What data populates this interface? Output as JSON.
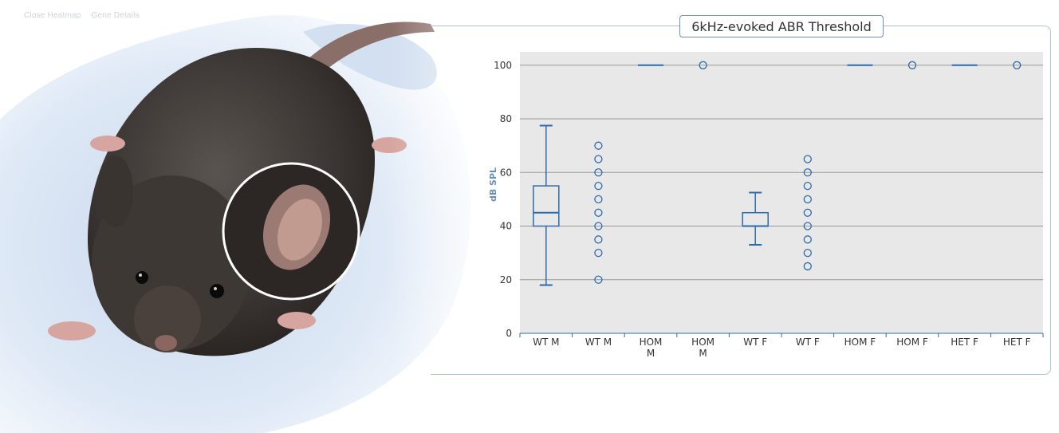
{
  "header": {
    "nav_items": [
      "Close Heatmap",
      "Gene Details"
    ]
  },
  "colors": {
    "series": "#2e6aab",
    "plot_bg": "#e8e8e8",
    "grid": "#999999"
  },
  "chart_data": {
    "type": "box",
    "title": "6kHz-evoked ABR Threshold",
    "ylabel": "dB SPL",
    "ylim": [
      0,
      105
    ],
    "yticks": [
      0,
      20,
      40,
      60,
      80,
      100
    ],
    "grid": true,
    "categories": [
      "WT M",
      "WT M",
      "HOM M",
      "HOM M",
      "WT F",
      "WT F",
      "HOM F",
      "HOM F",
      "HET F",
      "HET F"
    ],
    "groups": [
      {
        "kind": "box",
        "min": 18,
        "q1": 40,
        "median": 45,
        "q3": 55,
        "max": 77.5
      },
      {
        "kind": "points",
        "values": [
          20,
          30,
          35,
          40,
          45,
          50,
          55,
          60,
          65,
          70
        ]
      },
      {
        "kind": "box",
        "min": 100,
        "q1": 100,
        "median": 100,
        "q3": 100,
        "max": 100
      },
      {
        "kind": "points",
        "values": [
          100
        ]
      },
      {
        "kind": "box",
        "min": 33,
        "q1": 40,
        "median": 40,
        "q3": 45,
        "max": 52.5
      },
      {
        "kind": "points",
        "values": [
          25,
          30,
          35,
          40,
          45,
          50,
          55,
          60,
          65
        ]
      },
      {
        "kind": "box",
        "min": 100,
        "q1": 100,
        "median": 100,
        "q3": 100,
        "max": 100
      },
      {
        "kind": "points",
        "values": [
          100
        ]
      },
      {
        "kind": "box",
        "min": 100,
        "q1": 100,
        "median": 100,
        "q3": 100,
        "max": 100
      },
      {
        "kind": "points",
        "values": [
          100
        ]
      }
    ]
  }
}
